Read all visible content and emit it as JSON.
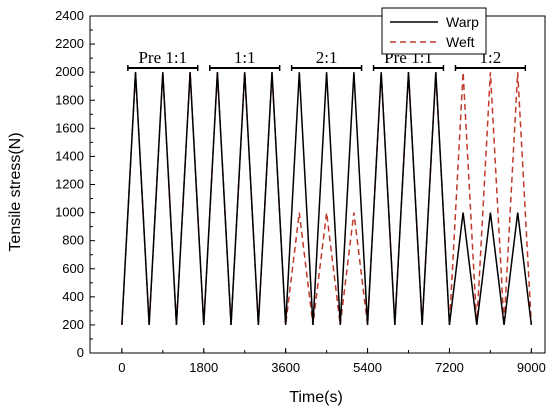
{
  "chart_data": {
    "type": "line",
    "xlabel": "Time(s)",
    "ylabel": "Tensile stress(N)",
    "xlim": [
      -700,
      9300
    ],
    "ylim": [
      0,
      2400
    ],
    "x_ticks": [
      0,
      1800,
      3600,
      5400,
      7200,
      9000
    ],
    "y_ticks": [
      0,
      200,
      400,
      600,
      800,
      1000,
      1200,
      1400,
      1600,
      1800,
      2000,
      2200,
      2400
    ],
    "legend_position": "top-right",
    "phases": [
      {
        "label": "Pre 1:1",
        "x_start": 0,
        "x_end": 1800
      },
      {
        "label": "1:1",
        "x_start": 1800,
        "x_end": 3600
      },
      {
        "label": "2:1",
        "x_start": 3600,
        "x_end": 5400
      },
      {
        "label": "Pre 1:1",
        "x_start": 5400,
        "x_end": 7200
      },
      {
        "label": "1:2",
        "x_start": 7200,
        "x_end": 9000
      }
    ],
    "cycle_period_s": 600,
    "cycle_min_N": 200,
    "series": [
      {
        "name": "Warp",
        "color": "#000000",
        "line_style": "solid",
        "peak_per_phase_N": [
          2000,
          2000,
          2000,
          2000,
          1000
        ]
      },
      {
        "name": "Weft",
        "color": "#c0392b",
        "line_style": "dashed",
        "peak_per_phase_N": [
          2000,
          2000,
          1000,
          2000,
          2000
        ]
      }
    ]
  }
}
